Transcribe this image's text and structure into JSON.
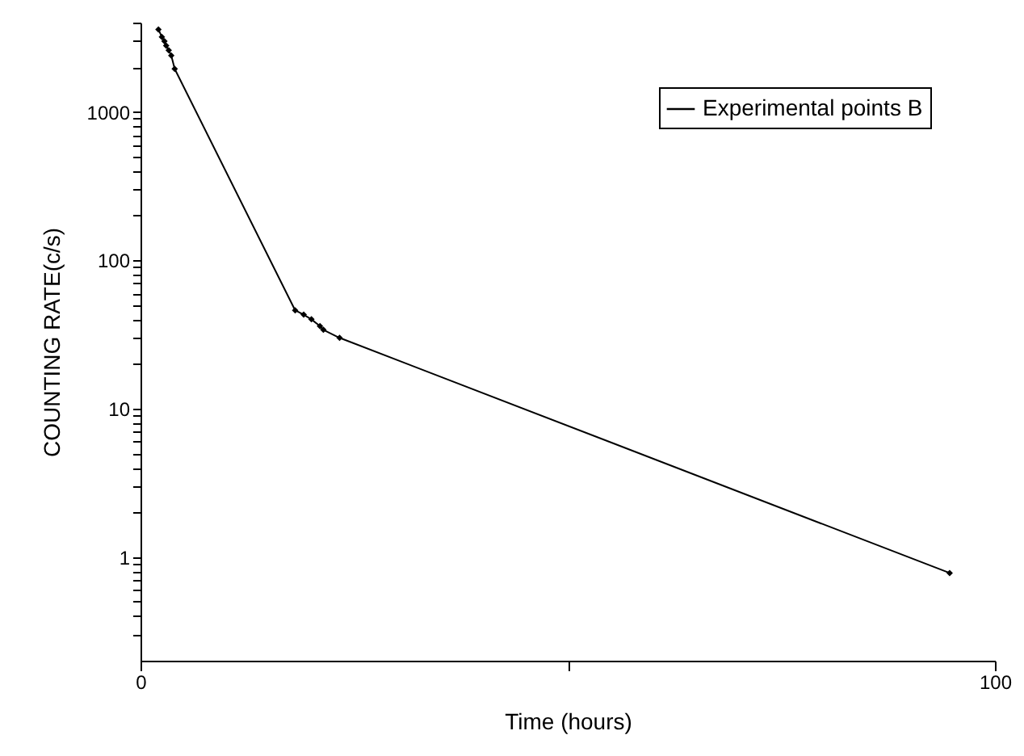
{
  "chart_data": {
    "type": "line",
    "xlabel": "Time (hours)",
    "ylabel": "COUNTING RATE(c/s)",
    "x": [
      2.1,
      2.5,
      2.8,
      3.0,
      3.3,
      3.6,
      4.0,
      18.1,
      19.1,
      20.0,
      21.0,
      21.4,
      23.3,
      94.7
    ],
    "series": [
      {
        "name": "Experimental points B",
        "color": "#000000",
        "values": [
          3600,
          3200,
          3000,
          2800,
          2600,
          2400,
          1950,
          46,
          43,
          40,
          36,
          34,
          30,
          0.78
        ]
      }
    ],
    "log": "y",
    "xlim": [
      0,
      100
    ],
    "xticks": [
      0,
      {
        "value": 50,
        "label": null
      },
      100
    ],
    "ylim": [
      0.2,
      4000
    ],
    "yticks": [
      {
        "value": 0.3,
        "label": null
      },
      {
        "value": 0.4,
        "label": null
      },
      {
        "value": 0.5,
        "label": null
      },
      {
        "value": 0.6,
        "label": null
      },
      {
        "value": 0.7,
        "label": null
      },
      {
        "value": 0.8,
        "label": null
      },
      {
        "value": 0.9,
        "label": null
      },
      1,
      {
        "value": 2,
        "label": null
      },
      {
        "value": 3,
        "label": null
      },
      {
        "value": 4,
        "label": null
      },
      {
        "value": 5,
        "label": null
      },
      {
        "value": 6,
        "label": null
      },
      {
        "value": 7,
        "label": null
      },
      {
        "value": 8,
        "label": null
      },
      {
        "value": 9,
        "label": null
      },
      10,
      {
        "value": 20,
        "label": null
      },
      {
        "value": 30,
        "label": null
      },
      {
        "value": 40,
        "label": null
      },
      {
        "value": 50,
        "label": null
      },
      {
        "value": 60,
        "label": null
      },
      {
        "value": 70,
        "label": null
      },
      {
        "value": 80,
        "label": null
      },
      {
        "value": 90,
        "label": null
      },
      100,
      {
        "value": 200,
        "label": null
      },
      {
        "value": 300,
        "label": null
      },
      {
        "value": 400,
        "label": null
      },
      {
        "value": 500,
        "label": null
      },
      {
        "value": 600,
        "label": null
      },
      {
        "value": 700,
        "label": null
      },
      {
        "value": 800,
        "label": null
      },
      {
        "value": 900,
        "label": null
      },
      1000,
      {
        "value": 2000,
        "label": null
      },
      {
        "value": 3000,
        "label": null
      },
      {
        "value": 4000,
        "label": null
      }
    ],
    "grid": false,
    "legend": "top right",
    "marker": "diamond",
    "line_style": "solid"
  }
}
